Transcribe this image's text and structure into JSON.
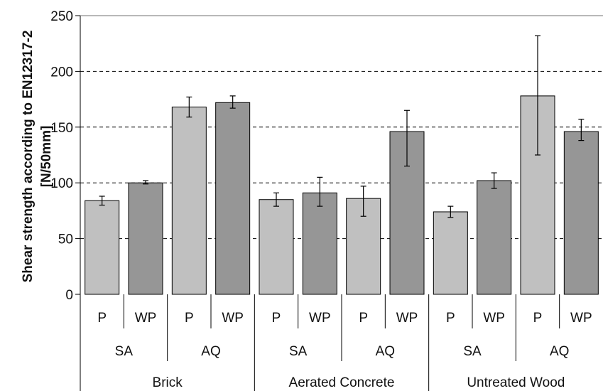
{
  "chart_data": {
    "type": "bar",
    "title": "",
    "ylabel_lines": [
      "Shear strength according to EN12317-2",
      "[N/50mm]"
    ],
    "ylim": [
      0,
      250
    ],
    "yticks": [
      0,
      50,
      100,
      150,
      200,
      250
    ],
    "grid": "horizontal dashed",
    "level1_labels": [
      "P",
      "WP",
      "P",
      "WP",
      "P",
      "WP",
      "P",
      "WP",
      "P",
      "WP",
      "P",
      "WP"
    ],
    "level2_labels": [
      "SA",
      "AQ",
      "SA",
      "AQ",
      "SA",
      "AQ"
    ],
    "level3_labels": [
      "Brick",
      "Aerated Concrete",
      "Untreated Wood"
    ],
    "values": [
      84,
      100,
      168,
      172,
      85,
      91,
      86,
      146,
      74,
      102,
      178,
      146
    ],
    "error_low": [
      80,
      99,
      159,
      167,
      79,
      79,
      70,
      115,
      69,
      95,
      125,
      138
    ],
    "error_high": [
      88,
      102,
      177,
      178,
      91,
      105,
      97,
      165,
      79,
      109,
      232,
      157
    ],
    "colors": {
      "P": "#c0c0c0",
      "WP": "#969696",
      "grid": "#000000"
    }
  }
}
